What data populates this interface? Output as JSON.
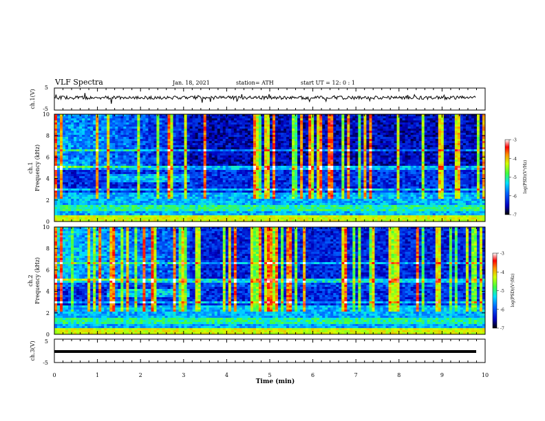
{
  "header": {
    "title": "VLF Spectra",
    "date": "Jan. 18, 2021",
    "station": "station= ATH",
    "start": "start  UT =   12: 0  : 1"
  },
  "chart_data": {
    "type": "spectrogram",
    "x_axis": {
      "label": "Time  (min)",
      "range": [
        0,
        10
      ],
      "ticks": [
        "0",
        "1",
        "2",
        "3",
        "4",
        "5",
        "6",
        "7",
        "8",
        "9",
        "10"
      ]
    },
    "panels": [
      {
        "id": "ch1_waveform",
        "type": "line",
        "ylabel": "ch.1(V)",
        "ylim": [
          -5,
          5
        ],
        "yticks": [
          "5",
          "-5"
        ]
      },
      {
        "id": "ch1_spectrogram",
        "type": "heatmap",
        "ylabel": "ch.1\nFrequency  (kHz)",
        "ylim": [
          0,
          10
        ],
        "yticks": [
          "0",
          "2",
          "4",
          "6",
          "8",
          "10"
        ],
        "colorbar": {
          "label": "log(PSD)(V²/Hz)",
          "range": [
            -7,
            -3
          ],
          "ticks": [
            "-3",
            "-4",
            "-5",
            "-6",
            "-7"
          ]
        }
      },
      {
        "id": "ch2_spectrogram",
        "type": "heatmap",
        "ylabel": "ch.2\nFrequency  (kHz)",
        "ylim": [
          0,
          10
        ],
        "yticks": [
          "0",
          "2",
          "4",
          "6",
          "8",
          "10"
        ],
        "colorbar": {
          "label": "log(PSD)(V²/Hz)",
          "range": [
            -7,
            -3
          ],
          "ticks": [
            "-3",
            "-4",
            "-5",
            "-6",
            "-7"
          ]
        }
      },
      {
        "id": "ch3_waveform",
        "type": "line",
        "ylabel": "ch.3(V)",
        "ylim": [
          -5,
          5
        ],
        "yticks": [
          "5",
          "-5"
        ]
      }
    ],
    "colorscale": [
      "#00008b",
      "#0000ff",
      "#0080ff",
      "#00e5ff",
      "#33ff66",
      "#ccff00",
      "#ffd000",
      "#ff6000",
      "#ff0000",
      "#ffffff"
    ]
  }
}
